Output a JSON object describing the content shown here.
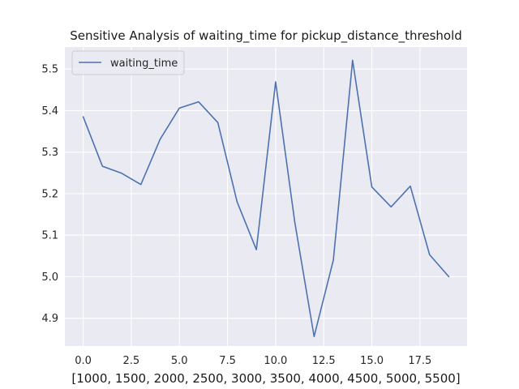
{
  "chart_data": {
    "type": "line",
    "title": "Sensitive Analysis of waiting_time for pickup_distance_threshold",
    "xlabel": "[1000, 1500, 2000, 2500, 3000, 3500, 4000, 4500, 5000, 5500]",
    "ylabel": "",
    "xlim": [
      -0.95,
      19.95
    ],
    "ylim": [
      4.833,
      5.553
    ],
    "xticks": [
      0.0,
      2.5,
      5.0,
      7.5,
      10.0,
      12.5,
      15.0,
      17.5
    ],
    "xtick_labels": [
      "0.0",
      "2.5",
      "5.0",
      "7.5",
      "10.0",
      "12.5",
      "15.0",
      "17.5"
    ],
    "yticks": [
      4.9,
      5.0,
      5.1,
      5.2,
      5.3,
      5.4,
      5.5
    ],
    "ytick_labels": [
      "4.9",
      "5.0",
      "5.1",
      "5.2",
      "5.3",
      "5.4",
      "5.5"
    ],
    "grid": true,
    "legend_position": "top-left",
    "background": "#eaeaf2",
    "gridline_color": "#ffffff",
    "series": [
      {
        "name": "waiting_time",
        "color": "#4c72b0",
        "x": [
          0,
          1,
          2,
          3,
          4,
          5,
          6,
          7,
          8,
          9,
          10,
          11,
          12,
          13,
          14,
          15,
          16,
          17,
          18,
          19
        ],
        "values": [
          5.385,
          5.266,
          5.249,
          5.222,
          5.331,
          5.406,
          5.421,
          5.371,
          5.18,
          5.065,
          5.469,
          5.13,
          4.856,
          5.04,
          5.521,
          5.216,
          5.168,
          5.218,
          5.053,
          5.0
        ]
      }
    ]
  }
}
